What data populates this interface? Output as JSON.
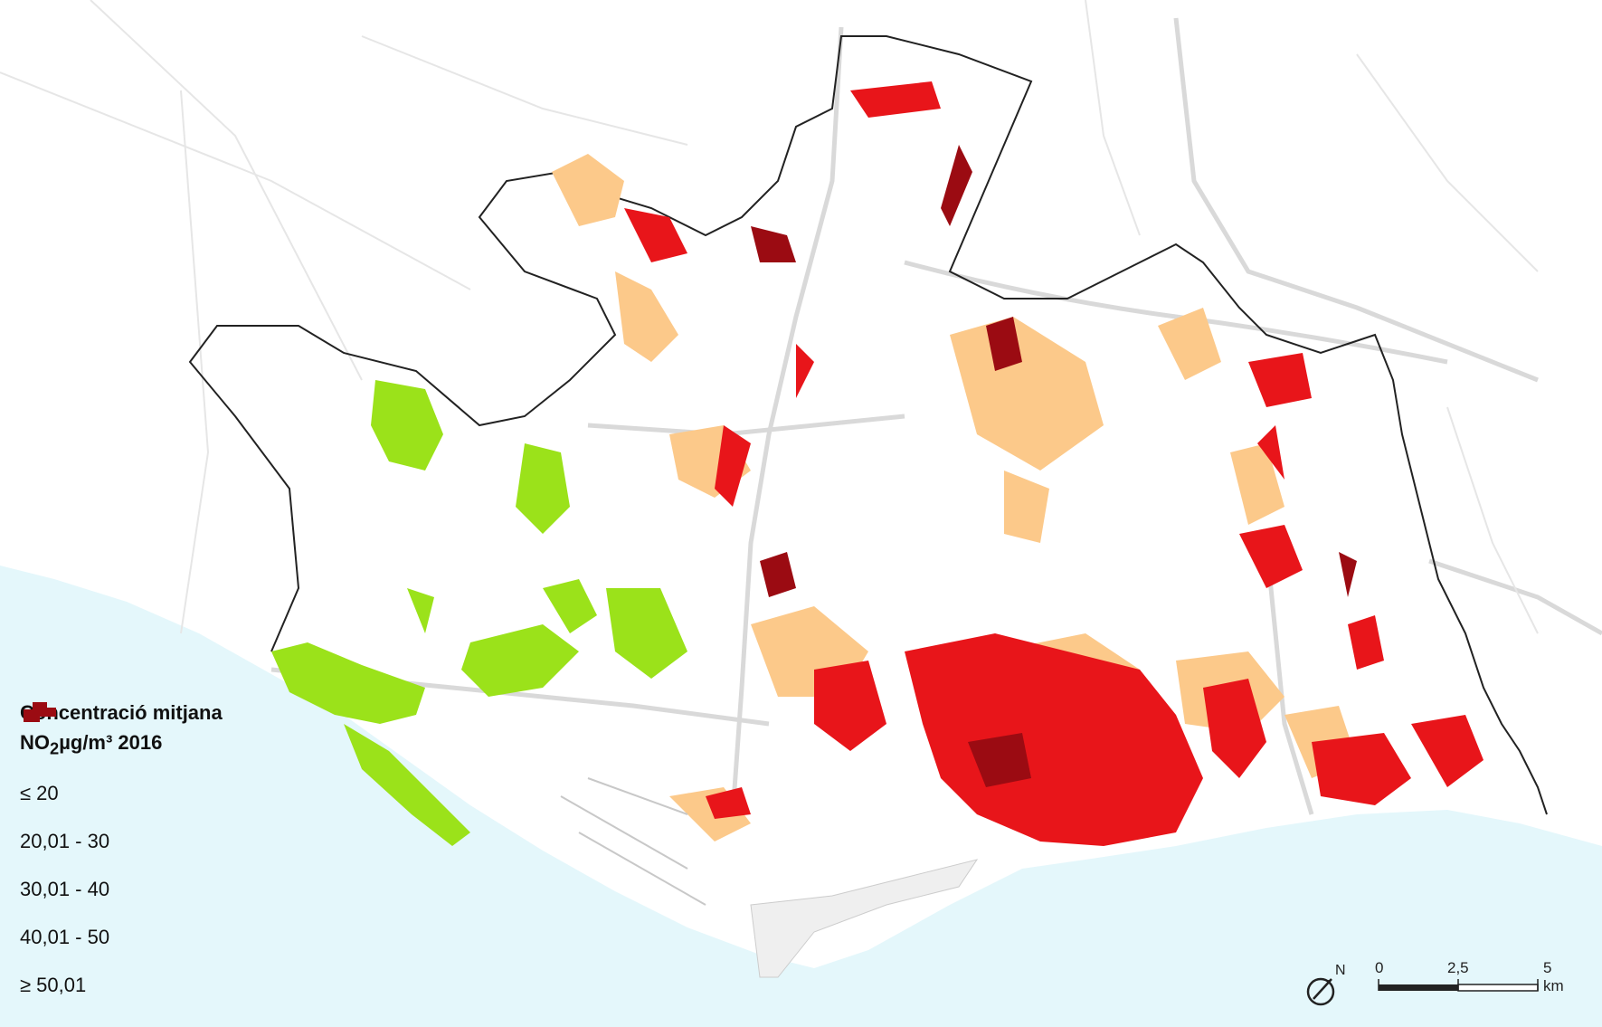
{
  "legend": {
    "title": "Concentració mitjana",
    "pollutant": "NO",
    "pollutant_sub": "2",
    "unit_year": "µg/m³ 2016",
    "items": [
      {
        "label": "≤ 20",
        "color": "#3aa121"
      },
      {
        "label": "20,01 - 30",
        "color": "#9be21a"
      },
      {
        "label": "30,01 - 40",
        "color": "#fcc98a"
      },
      {
        "label": "40,01 - 50",
        "color": "#e8151a"
      },
      {
        "label": "≥ 50,01",
        "color": "#9b0b12"
      }
    ]
  },
  "scale": {
    "ticks": [
      "0",
      "2,5",
      "5 km"
    ]
  },
  "north_arrow": {
    "label": "N"
  },
  "colors": {
    "sea": "#e4f7fb",
    "roads": "#d9d9d9",
    "boundary": "#222222"
  }
}
